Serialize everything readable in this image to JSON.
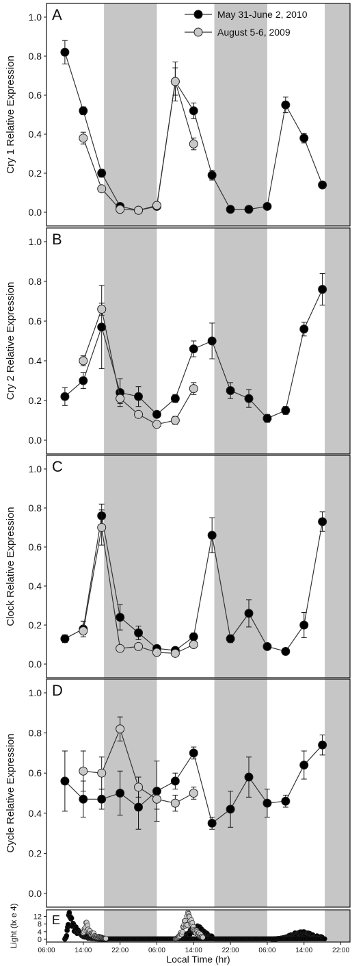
{
  "legend": {
    "series_a": "May 31-June 2, 2010",
    "series_b": "August 5-6, 2009"
  },
  "xlabel": "Local Time (hr)",
  "x_ticks": [
    "06:00",
    "14:00",
    "22:00",
    "06:00",
    "14:00",
    "22:00",
    "06:00",
    "14:00",
    "22:00"
  ],
  "dark_bands_hours": [
    [
      18.5,
      30
    ],
    [
      42.5,
      54
    ],
    [
      66.5,
      72
    ]
  ],
  "colors": {
    "series_a": "#000000",
    "series_b": "#c8c8c8",
    "dark_band": "#c6c6c6",
    "line": "#333333"
  },
  "chart_data": [
    {
      "type": "line",
      "panel": "A",
      "ylabel": "Cry 1 Relative Expression",
      "xlim": [
        6,
        72
      ],
      "ylim": [
        0,
        1.0
      ],
      "y_ticks": [
        0.0,
        0.2,
        0.4,
        0.6,
        0.8,
        1.0
      ],
      "series": [
        {
          "name": "May 31-June 2, 2010",
          "x": [
            10,
            14,
            18,
            22,
            26,
            30,
            34,
            38,
            42,
            46,
            50,
            54,
            58,
            62,
            66
          ],
          "values": [
            0.82,
            0.52,
            0.2,
            0.03,
            0.01,
            0.03,
            0.67,
            0.52,
            0.19,
            0.015,
            0.015,
            0.03,
            0.55,
            0.38,
            0.14
          ],
          "errors": [
            0.06,
            0.02,
            0.02,
            0.01,
            0.01,
            0.01,
            0.1,
            0.04,
            0.025,
            0.01,
            0.01,
            0.01,
            0.04,
            0.025,
            0.015
          ]
        },
        {
          "name": "August 5-6, 2009",
          "x": [
            14,
            18,
            22,
            26,
            30,
            34,
            38
          ],
          "values": [
            0.38,
            0.12,
            0.015,
            0.01,
            0.035,
            0.67,
            0.35
          ],
          "errors": [
            0.03,
            0.01,
            0.01,
            0.01,
            0.01,
            0.07,
            0.03
          ]
        }
      ]
    },
    {
      "type": "line",
      "panel": "B",
      "ylabel": "Cry 2 Relative Expression",
      "xlim": [
        6,
        72
      ],
      "ylim": [
        0,
        1.0
      ],
      "y_ticks": [
        0.0,
        0.2,
        0.4,
        0.6,
        0.8,
        1.0
      ],
      "series": [
        {
          "name": "May 31-June 2, 2010",
          "x": [
            10,
            14,
            18,
            22,
            26,
            30,
            34,
            38,
            42,
            46,
            50,
            54,
            58,
            62,
            66
          ],
          "values": [
            0.22,
            0.3,
            0.57,
            0.24,
            0.22,
            0.13,
            0.21,
            0.46,
            0.5,
            0.25,
            0.21,
            0.11,
            0.15,
            0.56,
            0.76
          ],
          "errors": [
            0.045,
            0.04,
            0.21,
            0.07,
            0.05,
            0.015,
            0.02,
            0.04,
            0.09,
            0.04,
            0.045,
            0.02,
            0.02,
            0.035,
            0.08
          ]
        },
        {
          "name": "August 5-6, 2009",
          "x": [
            14,
            18,
            22,
            26,
            30,
            34,
            38
          ],
          "values": [
            0.4,
            0.66,
            0.21,
            0.13,
            0.08,
            0.1,
            0.26
          ],
          "errors": [
            0.025,
            0.03,
            0.025,
            0.01,
            0.015,
            0.02,
            0.03
          ]
        }
      ]
    },
    {
      "type": "line",
      "panel": "C",
      "ylabel": "Clock Relative Expression",
      "xlim": [
        6,
        72
      ],
      "ylim": [
        0,
        1.0
      ],
      "y_ticks": [
        0.0,
        0.2,
        0.4,
        0.6,
        0.8,
        1.0
      ],
      "series": [
        {
          "name": "May 31-June 2, 2010",
          "x": [
            10,
            14,
            18,
            22,
            26,
            30,
            34,
            38,
            42,
            46,
            50,
            54,
            58,
            62,
            66
          ],
          "values": [
            0.13,
            0.18,
            0.76,
            0.24,
            0.16,
            0.08,
            0.07,
            0.14,
            0.66,
            0.13,
            0.26,
            0.09,
            0.065,
            0.2,
            0.73
          ],
          "errors": [
            0.02,
            0.04,
            0.06,
            0.065,
            0.035,
            0.01,
            0.01,
            0.02,
            0.09,
            0.02,
            0.07,
            0.01,
            0.01,
            0.065,
            0.05
          ]
        },
        {
          "name": "August 5-6, 2009",
          "x": [
            14,
            18,
            22,
            26,
            30,
            34,
            38
          ],
          "values": [
            0.17,
            0.7,
            0.08,
            0.09,
            0.06,
            0.055,
            0.1
          ],
          "errors": [
            0.02,
            0.09,
            0.01,
            0.01,
            0.01,
            0.01,
            0.01
          ]
        }
      ]
    },
    {
      "type": "line",
      "panel": "D",
      "ylabel": "Cycle Relative Expression",
      "xlim": [
        6,
        72
      ],
      "ylim": [
        0,
        1.0
      ],
      "y_ticks": [
        0.0,
        0.2,
        0.4,
        0.6,
        0.8,
        1.0
      ],
      "series": [
        {
          "name": "May 31-June 2, 2010",
          "x": [
            10,
            14,
            18,
            22,
            26,
            30,
            34,
            38,
            42,
            46,
            50,
            54,
            58,
            62,
            66
          ],
          "values": [
            0.56,
            0.47,
            0.47,
            0.5,
            0.43,
            0.51,
            0.56,
            0.7,
            0.35,
            0.42,
            0.58,
            0.45,
            0.46,
            0.64,
            0.74
          ],
          "errors": [
            0.15,
            0.09,
            0.05,
            0.11,
            0.11,
            0.15,
            0.04,
            0.03,
            0.03,
            0.09,
            0.1,
            0.07,
            0.03,
            0.07,
            0.05
          ]
        },
        {
          "name": "August 5-6, 2009",
          "x": [
            14,
            18,
            22,
            26,
            30,
            34,
            38
          ],
          "values": [
            0.61,
            0.6,
            0.82,
            0.53,
            0.47,
            0.45,
            0.5
          ],
          "errors": [
            0.1,
            0.08,
            0.06,
            0.05,
            0.05,
            0.04,
            0.03
          ]
        }
      ]
    },
    {
      "type": "scatter",
      "panel": "E",
      "ylabel": "Light (lx e 4)",
      "xlim": [
        6,
        72
      ],
      "ylim": [
        0,
        14
      ],
      "y_ticks": [
        0,
        4,
        8,
        12
      ],
      "series": [
        {
          "name": "May 31-June 2, 2010",
          "profiles": [
            {
              "start": 10,
              "end": 19,
              "peak_time": 11,
              "peak": 14,
              "base_before": 2,
              "rise": 0.5,
              "decay": 1.6
            },
            {
              "start": 35,
              "end": 42,
              "peak_time": 39,
              "peak": 7,
              "base_before": 0,
              "rise": 2.5,
              "decay": 2.0
            },
            {
              "start": 55,
              "end": 66,
              "peak_time": 62,
              "peak": 4,
              "base_before": 0,
              "rise": 3.5,
              "decay": 3.0
            }
          ]
        },
        {
          "name": "August 5-6, 2009",
          "profiles": [
            {
              "start": 14,
              "end": 19,
              "peak_time": 14.5,
              "peak": 9,
              "base_before": 1,
              "rise": 0.5,
              "decay": 1.5
            },
            {
              "start": 34,
              "end": 40,
              "peak_time": 37,
              "peak": 13,
              "base_before": 0,
              "rise": 1.5,
              "decay": 1.5
            }
          ]
        }
      ]
    }
  ]
}
